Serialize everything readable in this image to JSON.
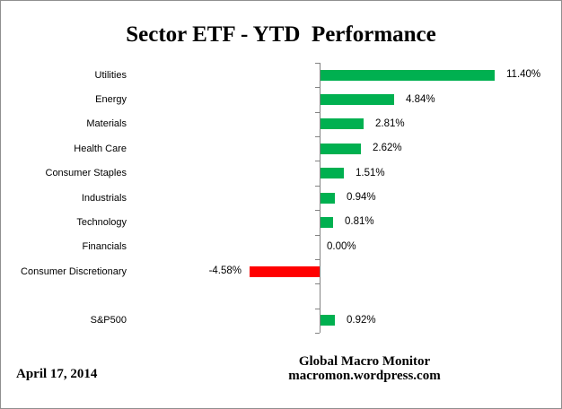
{
  "chart_data": {
    "type": "bar",
    "orientation": "horizontal",
    "title": "Sector ETF - YTD  Performance",
    "categories": [
      "Utilities",
      "Energy",
      "Materials",
      "Health Care",
      "Consumer Staples",
      "Industrials",
      "Technology",
      "Financials",
      "Consumer Discretionary",
      "",
      "S&P500"
    ],
    "values": [
      11.4,
      4.84,
      2.81,
      2.62,
      1.51,
      0.94,
      0.81,
      0.0,
      -4.58,
      null,
      0.92
    ],
    "value_labels": [
      "11.40%",
      "4.84%",
      "2.81%",
      "2.62%",
      "1.51%",
      "0.94%",
      "0.81%",
      "0.00%",
      "-4.58%",
      "",
      "0.92%"
    ],
    "xlabel": "",
    "ylabel": "",
    "xlim": [
      -12,
      12
    ],
    "grid": false,
    "legend": false,
    "colors": {
      "positive_bar": "#00B050",
      "negative_bar": "#FF0000",
      "axis_line": "#838383",
      "text": "#000000"
    }
  },
  "footer": {
    "date": "April 17, 2014",
    "credit_line1": "Global Macro Monitor",
    "credit_line2": "macromon.wordpress.com"
  }
}
